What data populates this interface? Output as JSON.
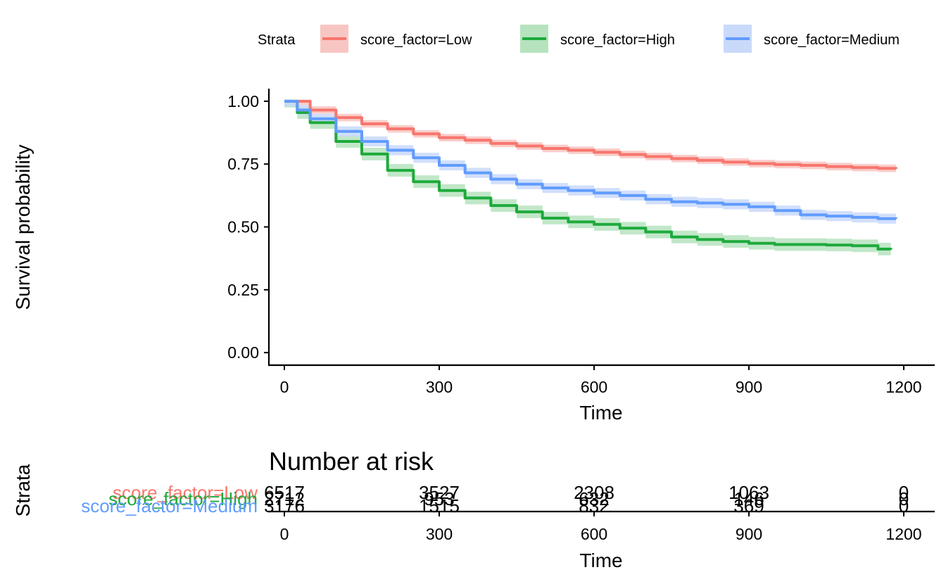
{
  "legend": {
    "title": "Strata",
    "entries": [
      {
        "label": "score_factor=Low",
        "color": "#F8766D",
        "fill": "#F8C6C2"
      },
      {
        "label": "score_factor=High",
        "color": "#1EAA3C",
        "fill": "#B6E3BE"
      },
      {
        "label": "score_factor=Medium",
        "color": "#619CFF",
        "fill": "#C9D9FA"
      }
    ]
  },
  "chart_data": {
    "type": "line",
    "subtype": "kaplan-meier",
    "xlabel": "Time",
    "ylabel": "Survival probability",
    "xlim": [
      -30,
      1260
    ],
    "ylim": [
      -0.05,
      1.05
    ],
    "xticks": [
      0,
      300,
      600,
      900,
      1200
    ],
    "yticks": [
      "0.00",
      "0.25",
      "0.50",
      "0.75",
      "1.00"
    ],
    "grid": false,
    "legend_position": "top",
    "series": [
      {
        "name": "score_factor=Low",
        "color": "#F8766D",
        "ci_width": 0.015,
        "points": [
          [
            0,
            1.0
          ],
          [
            50,
            0.965
          ],
          [
            100,
            0.935
          ],
          [
            150,
            0.91
          ],
          [
            200,
            0.89
          ],
          [
            250,
            0.87
          ],
          [
            300,
            0.855
          ],
          [
            350,
            0.845
          ],
          [
            400,
            0.832
          ],
          [
            450,
            0.822
          ],
          [
            500,
            0.812
          ],
          [
            550,
            0.805
          ],
          [
            600,
            0.797
          ],
          [
            650,
            0.788
          ],
          [
            700,
            0.78
          ],
          [
            750,
            0.772
          ],
          [
            800,
            0.765
          ],
          [
            850,
            0.758
          ],
          [
            900,
            0.752
          ],
          [
            950,
            0.748
          ],
          [
            1000,
            0.745
          ],
          [
            1050,
            0.74
          ],
          [
            1100,
            0.736
          ],
          [
            1150,
            0.733
          ],
          [
            1185,
            0.731
          ]
        ]
      },
      {
        "name": "score_factor=High",
        "color": "#1EAA3C",
        "ci_width": 0.025,
        "points": [
          [
            0,
            1.0
          ],
          [
            25,
            0.955
          ],
          [
            50,
            0.915
          ],
          [
            100,
            0.84
          ],
          [
            150,
            0.79
          ],
          [
            200,
            0.725
          ],
          [
            250,
            0.68
          ],
          [
            300,
            0.645
          ],
          [
            350,
            0.615
          ],
          [
            400,
            0.585
          ],
          [
            450,
            0.56
          ],
          [
            500,
            0.535
          ],
          [
            550,
            0.52
          ],
          [
            600,
            0.51
          ],
          [
            650,
            0.495
          ],
          [
            700,
            0.48
          ],
          [
            750,
            0.46
          ],
          [
            800,
            0.45
          ],
          [
            850,
            0.442
          ],
          [
            900,
            0.435
          ],
          [
            950,
            0.43
          ],
          [
            1000,
            0.43
          ],
          [
            1050,
            0.428
          ],
          [
            1100,
            0.425
          ],
          [
            1150,
            0.412
          ],
          [
            1175,
            0.41
          ]
        ]
      },
      {
        "name": "score_factor=Medium",
        "color": "#619CFF",
        "ci_width": 0.02,
        "points": [
          [
            0,
            1.0
          ],
          [
            25,
            0.965
          ],
          [
            50,
            0.93
          ],
          [
            100,
            0.88
          ],
          [
            150,
            0.84
          ],
          [
            200,
            0.805
          ],
          [
            250,
            0.775
          ],
          [
            300,
            0.745
          ],
          [
            350,
            0.715
          ],
          [
            400,
            0.69
          ],
          [
            450,
            0.67
          ],
          [
            500,
            0.655
          ],
          [
            550,
            0.645
          ],
          [
            600,
            0.635
          ],
          [
            650,
            0.625
          ],
          [
            700,
            0.61
          ],
          [
            750,
            0.6
          ],
          [
            800,
            0.595
          ],
          [
            850,
            0.59
          ],
          [
            900,
            0.58
          ],
          [
            950,
            0.565
          ],
          [
            1000,
            0.548
          ],
          [
            1050,
            0.543
          ],
          [
            1100,
            0.538
          ],
          [
            1150,
            0.533
          ],
          [
            1185,
            0.532
          ]
        ]
      }
    ]
  },
  "risk_table": {
    "title": "Number at risk",
    "ylabel": "Strata",
    "xlabel": "Time",
    "xticks": [
      0,
      300,
      600,
      900,
      1200
    ],
    "rows": [
      {
        "label": "score_factor=Low",
        "color": "#F8766D",
        "values": [
          "6517",
          "3527",
          "2308",
          "1063",
          "0"
        ]
      },
      {
        "label": "score_factor=High",
        "color": "#1EAA3C",
        "values": [
          "2712",
          "953",
          "632",
          "146",
          "0"
        ]
      },
      {
        "label": "score_factor=Medium",
        "color": "#619CFF",
        "values": [
          "3176",
          "1515",
          "832",
          "369",
          "0"
        ]
      }
    ]
  }
}
